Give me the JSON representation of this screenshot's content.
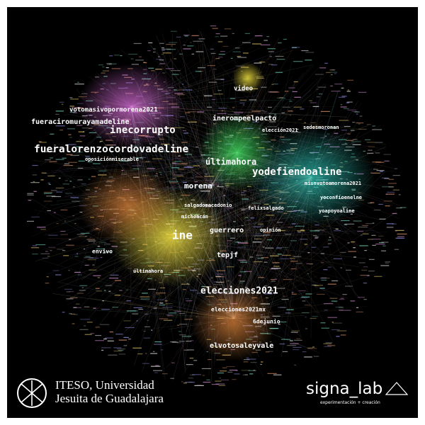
{
  "network": {
    "labels": [
      "fueralorenzocordovadeline",
      "inecorrupto",
      "fueraciromurayamadeline",
      "votomasivopormorena2021",
      "inerompeelpacto",
      "últimahora",
      "yodefiendoaline",
      "morena",
      "ine",
      "guerrero",
      "tepjf",
      "elecciones2021",
      "elecciones2021mx",
      "6dejunio",
      "elvotosaleyvale",
      "video",
      "envivo",
      "últimahora",
      "elección2021",
      "sedesmoronan",
      "miunvotoamorena2021",
      "yoapoyoaline",
      "opinión",
      "salgadomacedonio",
      "michoacán",
      "yoconfíoenelne",
      "oposiciónmiserable",
      "felixsalgado"
    ]
  },
  "logos": {
    "iteso_line1": "ITESO, Universidad",
    "iteso_line2": "Jesuita de Guadalajara",
    "signalab": "signa_lab",
    "signalab_tagline": "experimentación + creación"
  }
}
